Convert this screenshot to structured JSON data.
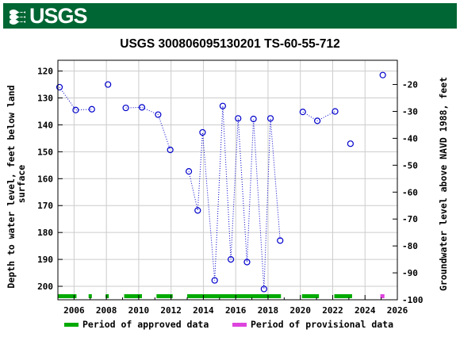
{
  "header": {
    "agency_logo_text": "USGS",
    "logo_icon": "usgs-wave-icon",
    "brand_color": "#006633"
  },
  "chart_data": {
    "type": "scatter",
    "title": "USGS 300806095130201 TS-60-55-712",
    "ylabel_left": "Depth to water level, feet below land surface",
    "ylabel_left_lines": [
      "Depth to water level, feet below land",
      "surface"
    ],
    "ylabel_right": "Groundwater level above NAVD 1988, feet",
    "xlim": [
      2005.0,
      2026.0
    ],
    "ylim_left": [
      205,
      116
    ],
    "ylim_right": [
      -100,
      -11
    ],
    "left_ticks": [
      120,
      130,
      140,
      150,
      160,
      170,
      180,
      190,
      200
    ],
    "left_tick_labels": [
      "120",
      "130",
      "140",
      "150",
      "160",
      "170",
      "180",
      "190",
      "200"
    ],
    "right_ticks": [
      -20,
      -30,
      -40,
      -50,
      -60,
      -70,
      -80,
      -90,
      -100
    ],
    "right_tick_labels": [
      "-20",
      "-30",
      "-40",
      "-50",
      "-60",
      "-70",
      "-80",
      "-90",
      "-100"
    ],
    "x_ticks": [
      2006,
      2008,
      2010,
      2012,
      2014,
      2016,
      2018,
      2020,
      2022,
      2024,
      2026
    ],
    "x_tick_labels": [
      "2006",
      "2008",
      "2010",
      "2012",
      "2014",
      "2016",
      "2018",
      "2020",
      "2022",
      "2024",
      "2026"
    ],
    "grid": true,
    "marker_color": "#0000cc",
    "segments": [
      [
        [
          2005.1,
          126
        ],
        [
          2006.1,
          134.5
        ],
        [
          2007.1,
          134.2
        ]
      ],
      [
        [
          2008.1,
          125
        ]
      ],
      [
        [
          2009.2,
          133.7
        ],
        [
          2010.2,
          133.5
        ],
        [
          2011.2,
          136.2
        ],
        [
          2011.95,
          149.3
        ]
      ],
      [
        [
          2013.1,
          157.3
        ],
        [
          2013.65,
          171.8
        ],
        [
          2013.95,
          142.8
        ],
        [
          2014.7,
          197.8
        ],
        [
          2015.2,
          133
        ],
        [
          2015.7,
          190
        ],
        [
          2016.15,
          137.6
        ],
        [
          2016.7,
          191
        ],
        [
          2017.1,
          137.8
        ],
        [
          2017.75,
          201
        ],
        [
          2018.15,
          137.6
        ],
        [
          2018.75,
          183
        ]
      ],
      [
        [
          2020.15,
          135.2
        ],
        [
          2021.05,
          138.5
        ],
        [
          2022.15,
          135
        ]
      ],
      [
        [
          2023.1,
          147
        ]
      ],
      [
        [
          2025.1,
          121.5
        ]
      ]
    ],
    "approved_periods": [
      [
        2005.0,
        2006.15
      ],
      [
        2006.9,
        2007.1
      ],
      [
        2007.95,
        2008.15
      ],
      [
        2009.1,
        2010.2
      ],
      [
        2011.1,
        2012.1
      ],
      [
        2013.0,
        2018.8
      ],
      [
        2020.1,
        2021.15
      ],
      [
        2022.1,
        2023.2
      ]
    ],
    "provisional_periods": [
      [
        2024.95,
        2025.2
      ]
    ],
    "approved_color": "#00aa00",
    "provisional_color": "#dd44dd",
    "legend": [
      {
        "label": "Period of approved data",
        "color": "#00aa00"
      },
      {
        "label": "Period of provisional data",
        "color": "#dd44dd"
      }
    ]
  }
}
